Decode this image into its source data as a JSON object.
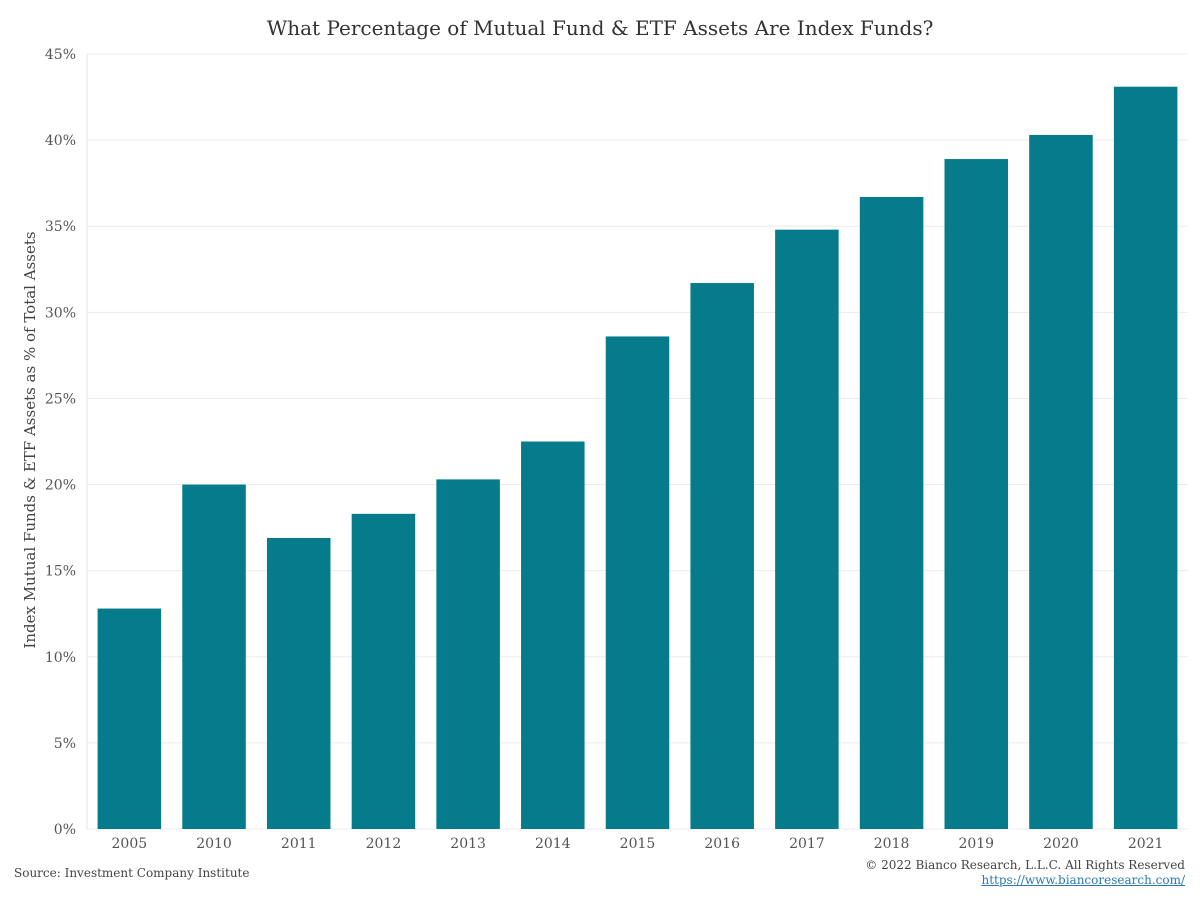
{
  "chart_data": {
    "type": "bar",
    "title": "What Percentage of Mutual Fund & ETF Assets Are Index Funds?",
    "xlabel": "",
    "ylabel": "Index Mutual Funds & ETF Assets as % of Total Assets",
    "categories": [
      "2005",
      "2010",
      "2011",
      "2012",
      "2013",
      "2014",
      "2015",
      "2016",
      "2017",
      "2018",
      "2019",
      "2020",
      "2021"
    ],
    "values": [
      12.8,
      20.0,
      16.9,
      18.3,
      20.3,
      22.5,
      28.6,
      31.7,
      34.8,
      36.7,
      38.9,
      40.3,
      43.1
    ],
    "ylim": [
      0,
      45
    ],
    "yticks": [
      0,
      5,
      10,
      15,
      20,
      25,
      30,
      35,
      40,
      45
    ],
    "ytick_labels": [
      "0%",
      "5%",
      "10%",
      "15%",
      "20%",
      "25%",
      "30%",
      "35%",
      "40%",
      "45%"
    ],
    "grid": true,
    "bar_color": "#057b8c",
    "grid_color": "#ececec"
  },
  "footer": {
    "source": "Source: Investment Company Institute",
    "copyright": "© 2022 Bianco Research, L.L.C. All Rights Reserved",
    "website": "https://www.biancoresearch.com/"
  }
}
